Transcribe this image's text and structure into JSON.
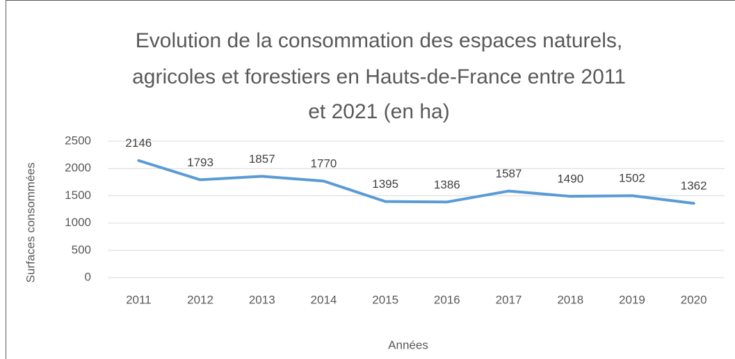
{
  "chart_data": {
    "type": "line",
    "title": [
      "Evolution de la consommation des espaces naturels,",
      "agricoles et forestiers en Hauts-de-France entre 2011",
      "et 2021 (en ha)"
    ],
    "x_label": "Années",
    "y_label": "Surfaces consommées",
    "categories": [
      "2011",
      "2012",
      "2013",
      "2014",
      "2015",
      "2016",
      "2017",
      "2018",
      "2019",
      "2020"
    ],
    "series": [
      {
        "name": "Surfaces consommées",
        "color": "#5b9bd5",
        "values": [
          2146,
          1793,
          1857,
          1770,
          1395,
          1386,
          1587,
          1490,
          1502,
          1362
        ]
      }
    ],
    "ylim": [
      0,
      2500
    ],
    "yticks": [
      0,
      500,
      1000,
      1500,
      2000,
      2500
    ],
    "grid": true
  }
}
